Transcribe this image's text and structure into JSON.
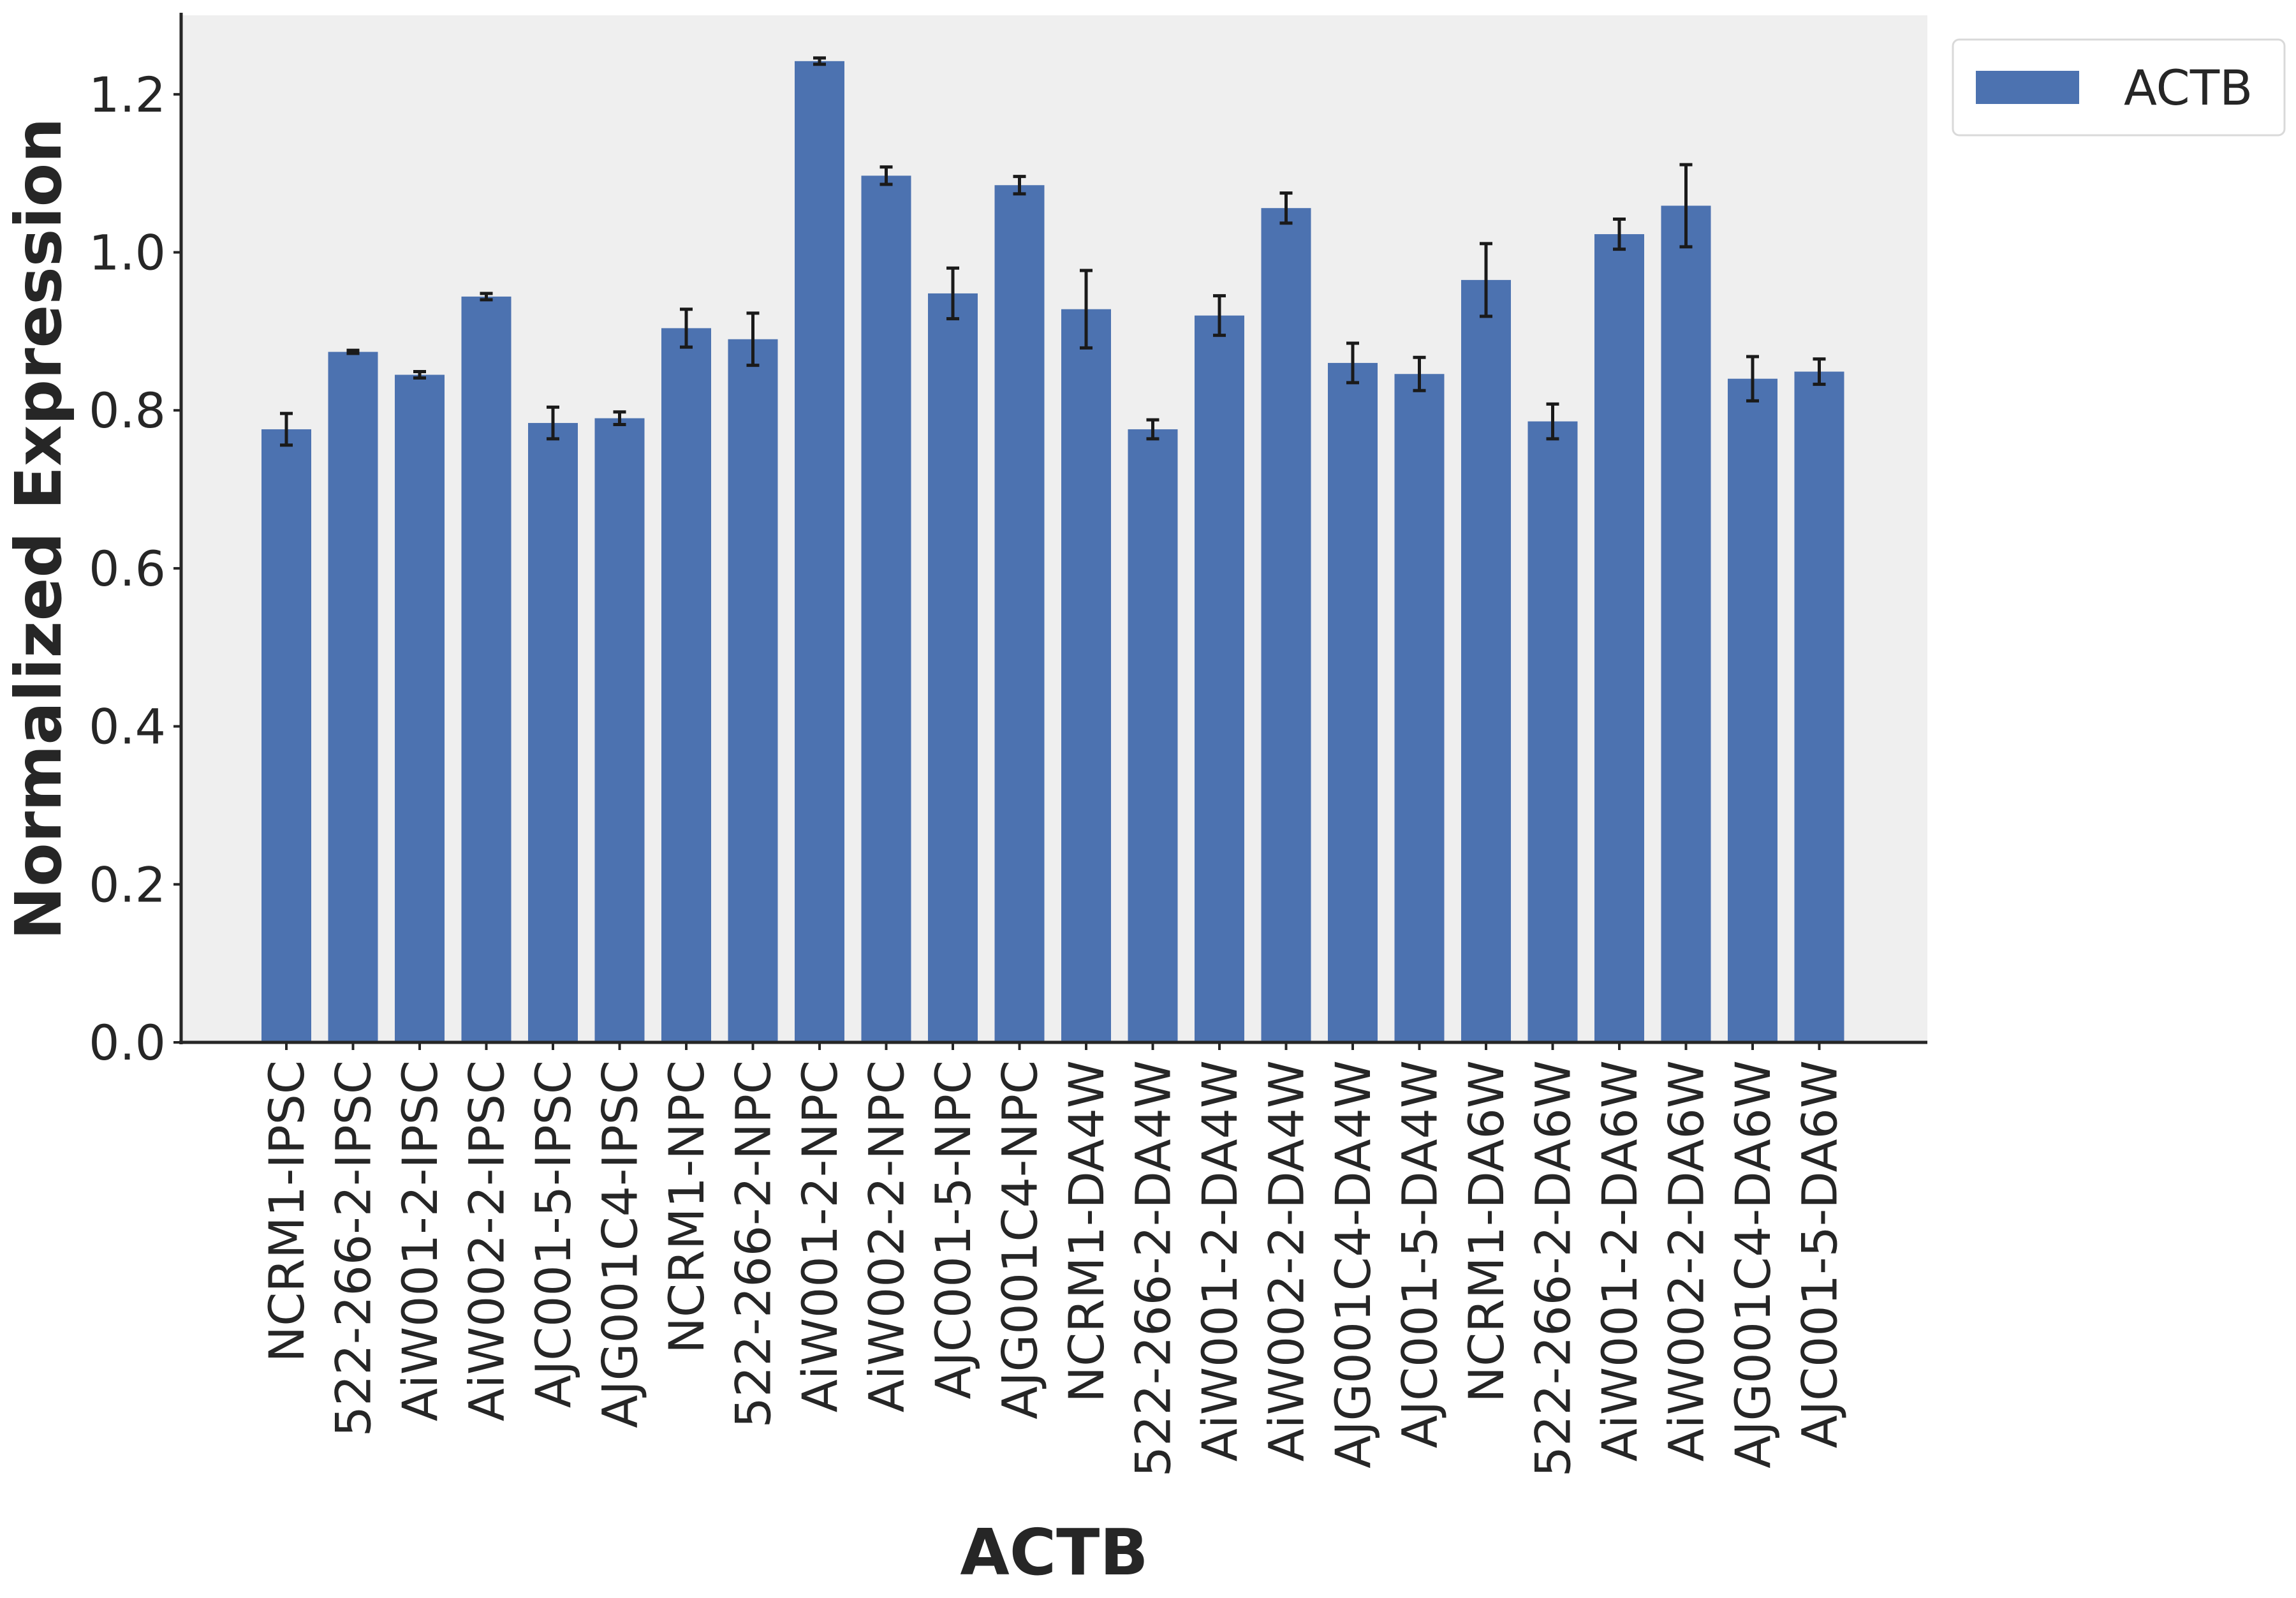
{
  "chart_data": {
    "type": "bar",
    "xlabel": "ACTB",
    "ylabel": "Normalized Expression",
    "ylim": [
      0,
      1.3
    ],
    "yticks": [
      0.0,
      0.2,
      0.4,
      0.6,
      0.8,
      1.0,
      1.2
    ],
    "ytick_labels": [
      "0.0",
      "0.2",
      "0.4",
      "0.6",
      "0.8",
      "1.0",
      "1.2"
    ],
    "grid": false,
    "legend_position": "top-right, outside plot",
    "categories": [
      "NCRM1-IPSC",
      "522-266-2-IPSC",
      "AiW001-2-IPSC",
      "AiW002-2-IPSC",
      "AJC001-5-IPSC",
      "AJG001C4-IPSC",
      "NCRM1-NPC",
      "522-266-2-NPC",
      "AiW001-2-NPC",
      "AiW002-2-NPC",
      "AJC001-5-NPC",
      "AJG001C4-NPC",
      "NCRM1-DA4W",
      "522-266-2-DA4W",
      "AiW001-2-DA4W",
      "AiW002-2-DA4W",
      "AJG001C4-DA4W",
      "AJC001-5-DA4W",
      "NCRM1-DA6W",
      "522-266-2-DA6W",
      "AiW001-2-DA6W",
      "AiW002-2-DA6W",
      "AJG001C4-DA6W",
      "AJC001-5-DA6W"
    ],
    "series": [
      {
        "name": "ACTB",
        "color": "#4c72b0",
        "values": [
          0.776,
          0.874,
          0.845,
          0.944,
          0.784,
          0.79,
          0.904,
          0.89,
          1.242,
          1.097,
          0.948,
          1.085,
          0.928,
          0.776,
          0.92,
          1.056,
          0.86,
          0.846,
          0.965,
          0.786,
          1.023,
          1.059,
          0.84,
          0.849
        ],
        "errors": [
          0.02,
          0.002,
          0.004,
          0.004,
          0.02,
          0.008,
          0.024,
          0.033,
          0.004,
          0.011,
          0.032,
          0.011,
          0.049,
          0.012,
          0.025,
          0.019,
          0.025,
          0.021,
          0.046,
          0.022,
          0.019,
          0.052,
          0.028,
          0.016
        ]
      }
    ],
    "colors": {
      "plot_background": "#efefef",
      "axis": "#262626",
      "error_bar": "#1a1a1a"
    }
  }
}
